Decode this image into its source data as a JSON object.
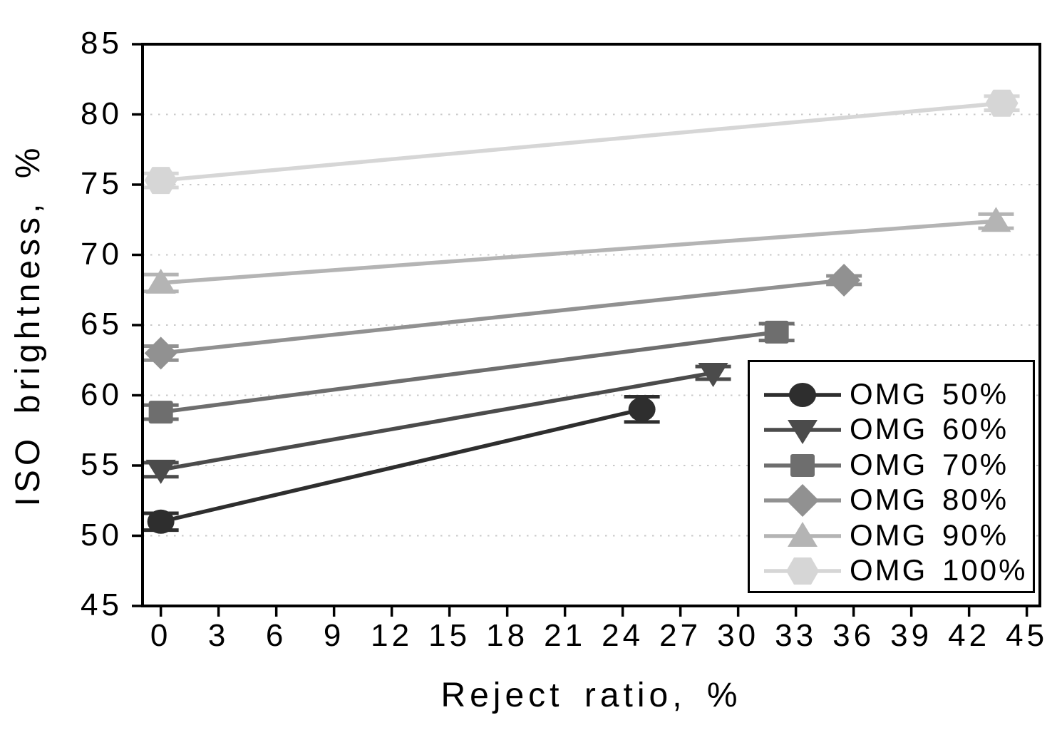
{
  "chart_data": {
    "type": "line",
    "title": "",
    "xlabel": "Reject ratio, %",
    "ylabel": "ISO brightness, %",
    "xlim": [
      -0.95,
      45.68
    ],
    "ylim": [
      45,
      85
    ],
    "x_ticks": [
      0,
      3,
      6,
      9,
      12,
      15,
      18,
      21,
      24,
      27,
      30,
      33,
      36,
      39,
      42,
      45
    ],
    "y_ticks": [
      45,
      50,
      55,
      60,
      65,
      70,
      75,
      80,
      85
    ],
    "y_gridlines": [
      50,
      55,
      60,
      65,
      70,
      75,
      80
    ],
    "grid_on": true,
    "grid_color": "#c8c8c8",
    "axis_color": "#000000",
    "background_color": "#ffffff",
    "legend_position": "lower right",
    "series": [
      {
        "name": "OMG 50%",
        "marker": "circle",
        "color": "#2e2e2e",
        "points": [
          {
            "x": 0,
            "y": 51.0,
            "yerr": 0.6
          },
          {
            "x": 25.0,
            "y": 59.0,
            "yerr": 0.9
          }
        ]
      },
      {
        "name": "OMG 60%",
        "marker": "triangle-down",
        "color": "#4b4b4b",
        "points": [
          {
            "x": 0,
            "y": 54.7,
            "yerr": 0.5
          },
          {
            "x": 28.7,
            "y": 61.6,
            "yerr": 0.45
          }
        ]
      },
      {
        "name": "OMG 70%",
        "marker": "square",
        "color": "#6e6e6e",
        "points": [
          {
            "x": 0,
            "y": 58.8,
            "yerr": 0.5
          },
          {
            "x": 32.0,
            "y": 64.5,
            "yerr": 0.6
          }
        ]
      },
      {
        "name": "OMG 80%",
        "marker": "diamond",
        "color": "#919191",
        "points": [
          {
            "x": 0,
            "y": 63.0,
            "yerr": 0.5
          },
          {
            "x": 35.5,
            "y": 68.2,
            "yerr": 0.3
          }
        ]
      },
      {
        "name": "OMG 90%",
        "marker": "triangle-up",
        "color": "#b4b4b4",
        "points": [
          {
            "x": 0,
            "y": 68.0,
            "yerr": 0.6
          },
          {
            "x": 43.4,
            "y": 72.4,
            "yerr": 0.5
          }
        ]
      },
      {
        "name": "OMG 100%",
        "marker": "hexagon",
        "color": "#d6d6d6",
        "points": [
          {
            "x": 0,
            "y": 75.3,
            "yerr": 0.5
          },
          {
            "x": 43.7,
            "y": 80.8,
            "yerr": 0.5
          }
        ]
      }
    ]
  }
}
